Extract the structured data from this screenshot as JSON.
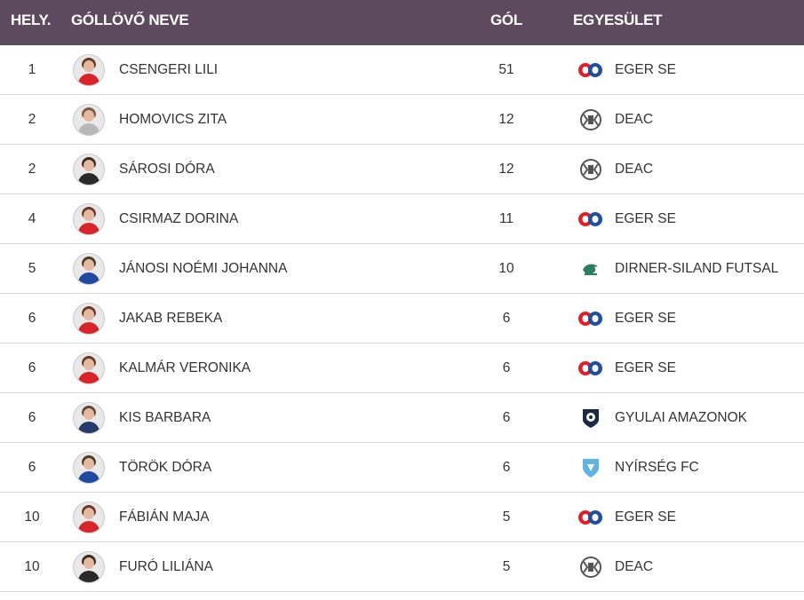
{
  "header": {
    "pos_label": "HELY.",
    "name_label": "GÓLLÖVŐ NEVE",
    "goal_label": "GÓL",
    "club_label": "EGYESÜLET"
  },
  "colors": {
    "header_bg": "#5e4a5e",
    "eger_red": "#e31e24",
    "eger_blue": "#1e4fa3",
    "deac_gray": "#555555",
    "dirner_green": "#2e7d62",
    "gyula_navy": "#1c2b45",
    "nyirseg_blue": "#5fb4e0"
  },
  "rows": [
    {
      "pos": "1",
      "name": "CSENGERI LILI",
      "goals": "51",
      "club": "EGER SE",
      "logo": "eger-se-logo",
      "kit": "red"
    },
    {
      "pos": "2",
      "name": "HOMOVICS ZITA",
      "goals": "12",
      "club": "DEAC",
      "logo": "deac-logo",
      "kit": "gray"
    },
    {
      "pos": "2",
      "name": "SÁROSI DÓRA",
      "goals": "12",
      "club": "DEAC",
      "logo": "deac-logo",
      "kit": "dark"
    },
    {
      "pos": "4",
      "name": "CSIRMAZ DORINA",
      "goals": "11",
      "club": "EGER SE",
      "logo": "eger-se-logo",
      "kit": "red"
    },
    {
      "pos": "5",
      "name": "JÁNOSI NOÉMI JOHANNA",
      "goals": "10",
      "club": "DIRNER-SILAND FUTSAL",
      "logo": "dirner-siland-logo",
      "kit": "blue"
    },
    {
      "pos": "6",
      "name": "JAKAB REBEKA",
      "goals": "6",
      "club": "EGER SE",
      "logo": "eger-se-logo",
      "kit": "red"
    },
    {
      "pos": "6",
      "name": "KALMÁR VERONIKA",
      "goals": "6",
      "club": "EGER SE",
      "logo": "eger-se-logo",
      "kit": "red"
    },
    {
      "pos": "6",
      "name": "KIS BARBARA",
      "goals": "6",
      "club": "GYULAI AMAZONOK",
      "logo": "gyulai-amazonok-logo",
      "kit": "navy"
    },
    {
      "pos": "6",
      "name": "TÖRÖK DÓRA",
      "goals": "6",
      "club": "NYÍRSÉG FC",
      "logo": "nyirseg-fc-logo",
      "kit": "blue"
    },
    {
      "pos": "10",
      "name": "FÁBIÁN MAJA",
      "goals": "5",
      "club": "EGER SE",
      "logo": "eger-se-logo",
      "kit": "red"
    },
    {
      "pos": "10",
      "name": "FURÓ LILIÁNA",
      "goals": "5",
      "club": "DEAC",
      "logo": "deac-logo",
      "kit": "dark"
    }
  ]
}
